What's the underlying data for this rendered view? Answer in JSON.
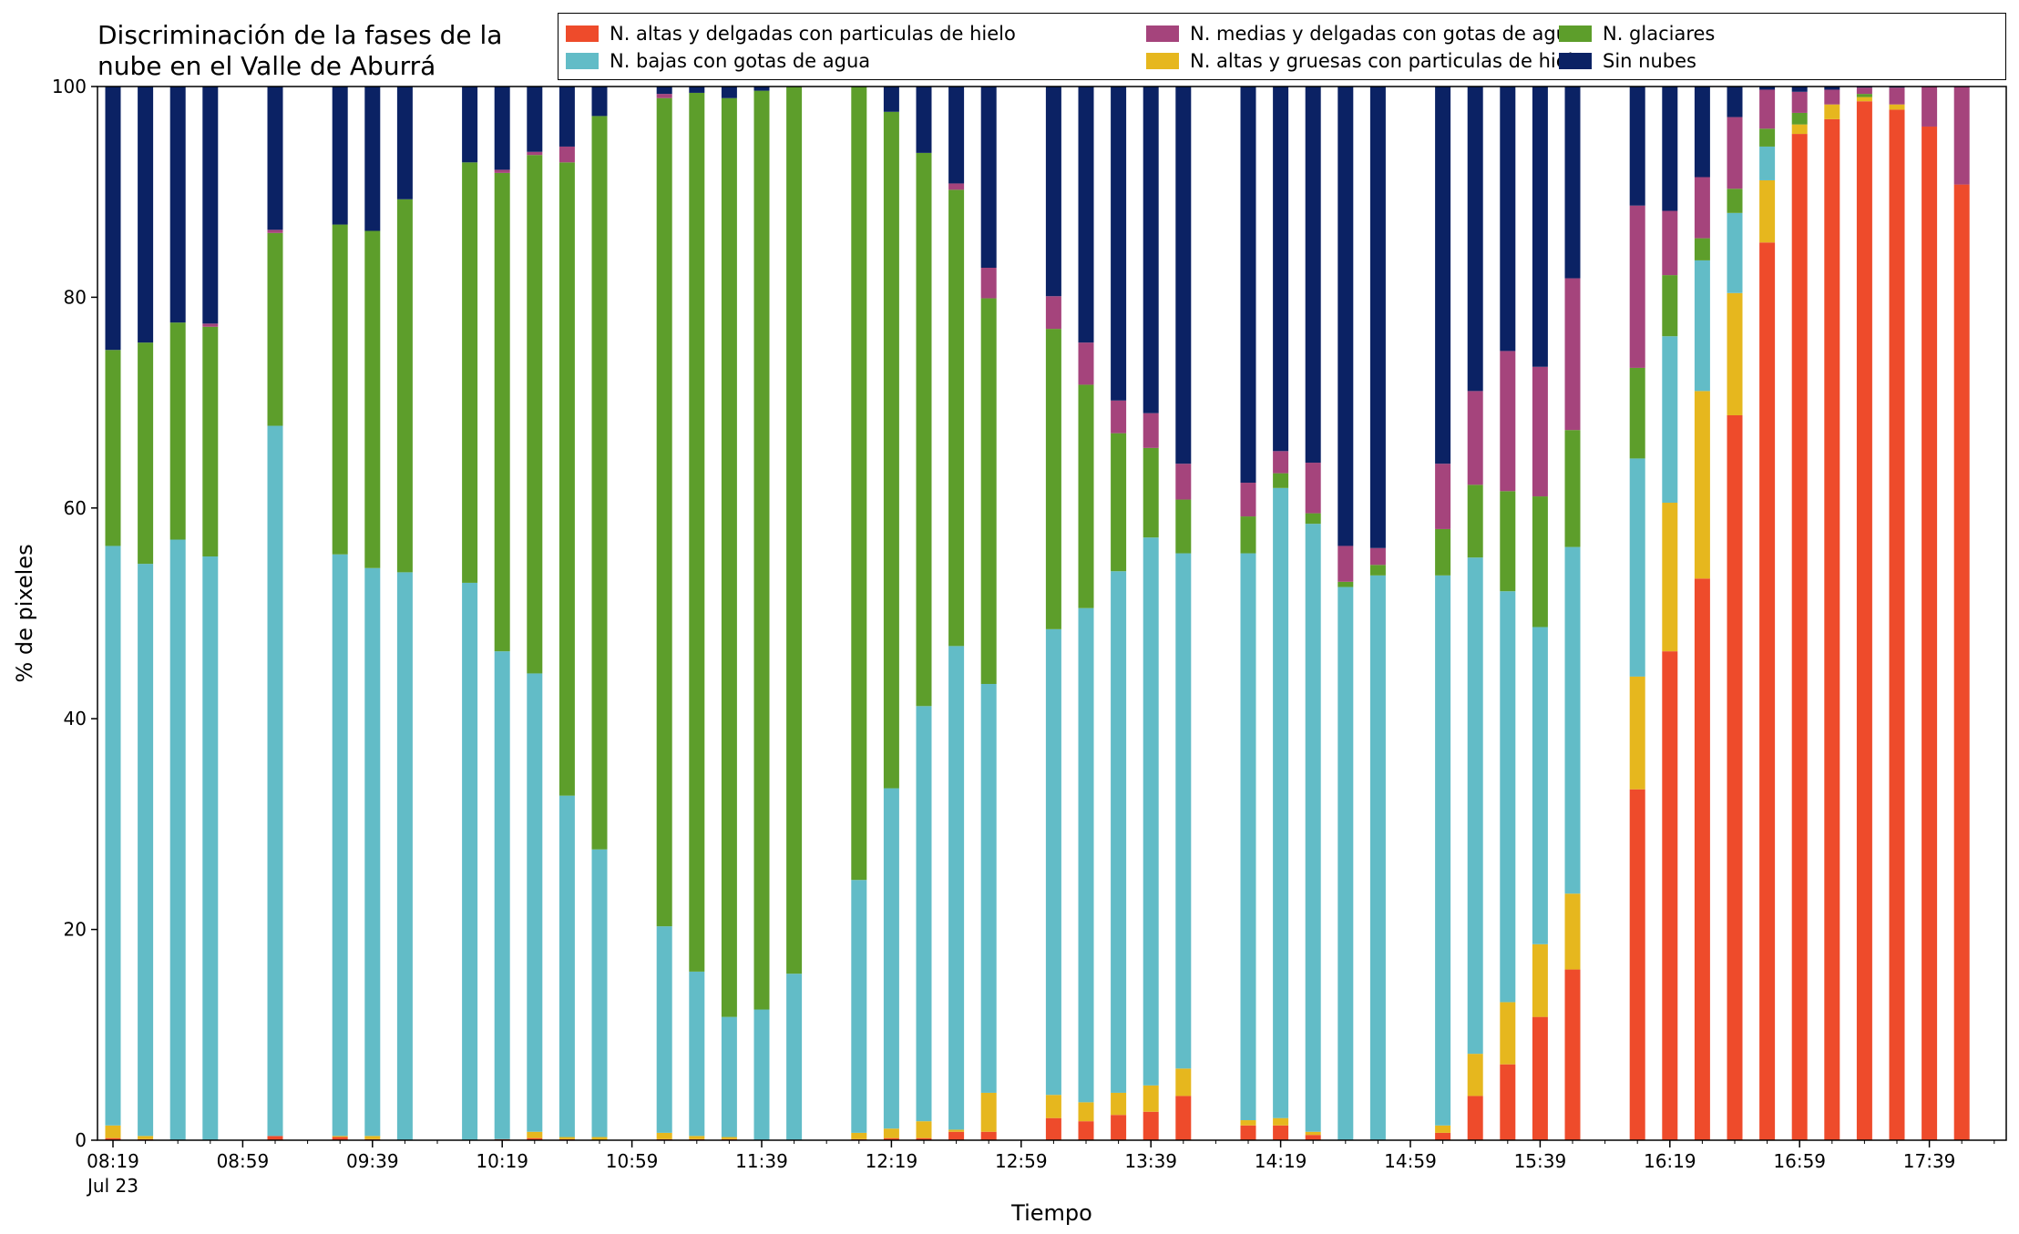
{
  "title_line1": "Discriminación de la fases de la",
  "title_line2": "nube en el Valle de Aburrá",
  "chart_data": {
    "type": "bar",
    "stacked": true,
    "xlabel": "Tiempo",
    "ylabel": "% de pixeles",
    "ylim": [
      0,
      100
    ],
    "yticks": [
      "0",
      "20",
      "40",
      "60",
      "80",
      "100"
    ],
    "xtick_labels": [
      "08:19",
      "08:59",
      "09:39",
      "10:19",
      "10:59",
      "11:39",
      "12:19",
      "12:59",
      "13:39",
      "14:19",
      "14:59",
      "15:39",
      "16:19",
      "16:59",
      "17:39"
    ],
    "xtick_sublabel": "Jul 23",
    "grid": false,
    "legend_position": "top-right",
    "categories": [
      "08:19",
      "08:29",
      "08:39",
      "08:49",
      "08:59",
      "09:09",
      "09:19",
      "09:29",
      "09:39",
      "09:49",
      "09:59",
      "10:09",
      "10:19",
      "10:29",
      "10:39",
      "10:49",
      "10:59",
      "11:09",
      "11:19",
      "11:29",
      "11:39",
      "11:49",
      "11:59",
      "12:09",
      "12:19",
      "12:29",
      "12:39",
      "12:49",
      "12:59",
      "13:09",
      "13:19",
      "13:29",
      "13:39",
      "13:49",
      "13:59",
      "14:09",
      "14:19",
      "14:29",
      "14:39",
      "14:49",
      "14:59",
      "15:09",
      "15:19",
      "15:29",
      "15:39",
      "15:49",
      "15:59",
      "16:09",
      "16:19",
      "16:29",
      "16:39",
      "16:49",
      "16:59",
      "17:09",
      "17:19",
      "17:29",
      "17:39",
      "17:49"
    ],
    "series": [
      {
        "name": "N. altas y delgadas con particulas de hielo",
        "color": "#ee4b2b",
        "values": [
          0.2,
          0.1,
          0,
          0,
          null,
          0.4,
          null,
          0.3,
          0.1,
          0,
          null,
          0,
          0.1,
          0.2,
          0.1,
          0,
          null,
          0.1,
          0.1,
          0.1,
          0,
          0,
          null,
          0.1,
          0.2,
          0.2,
          0.8,
          0.8,
          null,
          2.1,
          1.8,
          2.4,
          2.7,
          4.2,
          null,
          1.4,
          1.4,
          0.5,
          0,
          0,
          null,
          0.7,
          4.2,
          7.2,
          11.7,
          16.2,
          null,
          33.3,
          46.4,
          53.3,
          68.8,
          85.2,
          95.5,
          96.9,
          98.6,
          97.8,
          96.2,
          90.7
        ]
      },
      {
        "name": "N. altas y gruesas con particulas de hielo",
        "color": "#e6b71e",
        "values": [
          1.2,
          0.3,
          0,
          0,
          null,
          0,
          null,
          0.1,
          0.3,
          0,
          null,
          0,
          0,
          0.6,
          0.2,
          0.3,
          null,
          0.6,
          0.3,
          0.2,
          0,
          0,
          null,
          0.6,
          0.9,
          1.6,
          0.2,
          3.7,
          null,
          2.2,
          1.8,
          2.1,
          2.5,
          2.6,
          null,
          0.5,
          0.7,
          0.3,
          0,
          0,
          null,
          0.7,
          4.0,
          5.9,
          6.9,
          7.2,
          null,
          10.7,
          14.1,
          17.8,
          11.6,
          5.9,
          0.9,
          1.4,
          0.4,
          0.5,
          0,
          0
        ]
      },
      {
        "name": "N. bajas con gotas de agua",
        "color": "#62bcc7",
        "values": [
          55.0,
          54.3,
          57.0,
          55.4,
          null,
          67.4,
          null,
          55.2,
          53.9,
          53.9,
          null,
          52.9,
          46.3,
          43.5,
          32.4,
          27.3,
          null,
          19.6,
          15.6,
          11.4,
          12.4,
          15.8,
          null,
          24.0,
          32.3,
          39.4,
          45.9,
          38.8,
          null,
          44.2,
          46.9,
          49.5,
          52.0,
          48.9,
          null,
          53.8,
          59.8,
          57.7,
          52.5,
          53.6,
          null,
          52.2,
          47.1,
          39.0,
          30.1,
          32.9,
          null,
          20.7,
          15.8,
          12.4,
          7.6,
          3.2,
          0,
          0,
          0,
          0,
          0,
          0
        ]
      },
      {
        "name": "N. glaciares",
        "color": "#5d9e2b",
        "values": [
          18.6,
          21.0,
          20.6,
          21.8,
          null,
          18.3,
          null,
          31.3,
          32.0,
          35.4,
          null,
          39.9,
          45.4,
          49.2,
          60.1,
          69.6,
          null,
          78.6,
          83.4,
          87.2,
          87.2,
          84.2,
          null,
          75.3,
          64.2,
          52.5,
          43.3,
          36.6,
          null,
          28.5,
          21.2,
          13.1,
          8.5,
          5.1,
          null,
          3.5,
          1.4,
          1.0,
          0.5,
          1.0,
          null,
          4.4,
          6.9,
          9.5,
          12.4,
          11.1,
          null,
          8.6,
          5.8,
          2.1,
          2.3,
          1.7,
          1.1,
          0,
          0.3,
          0,
          0,
          0
        ]
      },
      {
        "name": "N. medias y delgadas con gotas de agua",
        "color": "#a5447c",
        "values": [
          0,
          0,
          0,
          0.3,
          null,
          0.3,
          null,
          0,
          0,
          0,
          null,
          0,
          0.3,
          0.3,
          1.5,
          0,
          null,
          0.4,
          0,
          0,
          0,
          0,
          null,
          0,
          0,
          0,
          0.6,
          2.9,
          null,
          3.1,
          4.0,
          3.1,
          3.3,
          3.4,
          null,
          3.2,
          2.1,
          4.8,
          3.4,
          1.6,
          null,
          6.2,
          8.9,
          13.3,
          12.3,
          14.4,
          null,
          15.4,
          6.1,
          5.8,
          6.8,
          3.7,
          2.0,
          1.4,
          0.6,
          1.6,
          3.8,
          9.3
        ]
      },
      {
        "name": "Sin nubes",
        "color": "#0b2264",
        "values": [
          25.0,
          24.3,
          22.4,
          22.5,
          null,
          13.6,
          null,
          13.1,
          13.7,
          10.7,
          null,
          7.2,
          7.9,
          6.2,
          5.7,
          2.8,
          null,
          0.7,
          0.6,
          1.1,
          0.4,
          0,
          null,
          0,
          2.4,
          6.3,
          9.2,
          17.2,
          null,
          19.9,
          24.3,
          29.8,
          31.0,
          35.8,
          null,
          37.6,
          34.6,
          35.7,
          43.6,
          43.8,
          null,
          35.8,
          28.9,
          25.1,
          26.6,
          18.2,
          null,
          11.3,
          11.8,
          8.6,
          2.9,
          0.3,
          0.5,
          0.3,
          0.1,
          0.1,
          0,
          0
        ]
      }
    ]
  }
}
